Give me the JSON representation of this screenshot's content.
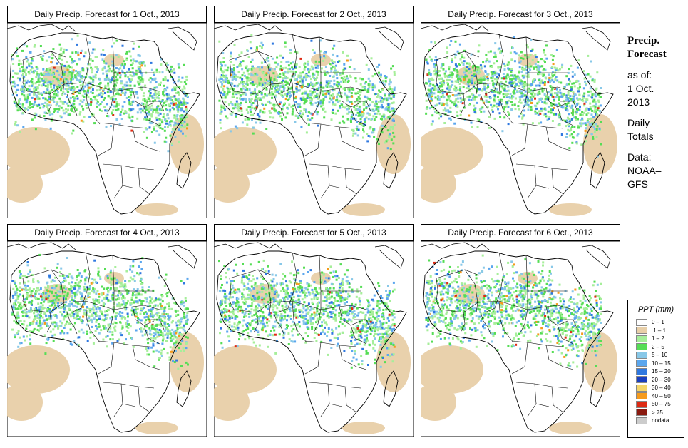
{
  "panels": [
    {
      "title": "Daily Precip. Forecast for  1 Oct., 2013",
      "day": 1
    },
    {
      "title": "Daily Precip. Forecast for  2 Oct., 2013",
      "day": 2
    },
    {
      "title": "Daily Precip. Forecast for  3 Oct., 2013",
      "day": 3
    },
    {
      "title": "Daily Precip. Forecast for  4 Oct., 2013",
      "day": 4
    },
    {
      "title": "Daily Precip. Forecast for  5 Oct., 2013",
      "day": 5
    },
    {
      "title": "Daily Precip. Forecast for  6 Oct., 2013",
      "day": 6
    }
  ],
  "side": {
    "heading1": "Precip.",
    "heading2": "Forecast",
    "asof": "as of:",
    "date1": "1 Oct.",
    "date2": "2013",
    "daily1": "Daily",
    "daily2": "Totals",
    "data1": "Data:",
    "data2": "NOAA–",
    "data3": "GFS"
  },
  "legend": {
    "title": "PPT (mm)",
    "items": [
      {
        "label": "0 – 1",
        "color": "#ffffff"
      },
      {
        "label": ".1 – 1",
        "color": "#e8cfa8"
      },
      {
        "label": "1 – 2",
        "color": "#a6ee9a"
      },
      {
        "label": "2 – 5",
        "color": "#55dd55"
      },
      {
        "label": "5 – 10",
        "color": "#88c8e8"
      },
      {
        "label": "10 – 15",
        "color": "#5aa6ee"
      },
      {
        "label": "15 – 20",
        "color": "#2f78e0"
      },
      {
        "label": "20 – 30",
        "color": "#1a3fc0"
      },
      {
        "label": "30 – 40",
        "color": "#f5d66a"
      },
      {
        "label": "40 – 50",
        "color": "#f59a1c"
      },
      {
        "label": "50 – 75",
        "color": "#dd2a14"
      },
      {
        "label": "> 75",
        "color": "#8a1a10"
      },
      {
        "label": "nodata",
        "color": "#cccccc"
      }
    ]
  }
}
